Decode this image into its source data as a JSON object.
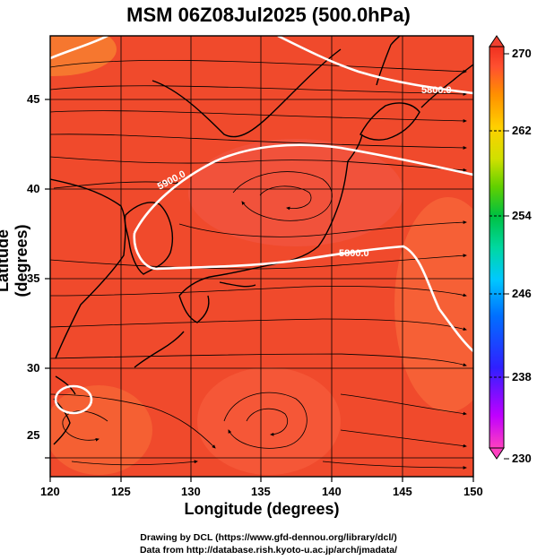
{
  "title": "MSM 06Z08Jul2025 (500.0hPa)",
  "axes": {
    "xlabel": "Longitude (degrees)",
    "ylabel": "Latitude  (degrees)",
    "x_ticks": [
      "120",
      "125",
      "130",
      "135",
      "140",
      "145",
      "150"
    ],
    "y_ticks": [
      "25",
      "30",
      "35",
      "40",
      "45"
    ]
  },
  "contour_labels": [
    "5800.0",
    "5900.0",
    "5800.0"
  ],
  "colorbar": {
    "ticks": [
      "270",
      "262",
      "254",
      "246",
      "238",
      "230"
    ],
    "range": [
      230,
      270
    ],
    "colors": [
      "#ff40c0",
      "#c000ff",
      "#3020ff",
      "#0070ff",
      "#00c8ff",
      "#00d8a0",
      "#00c040",
      "#60d000",
      "#d0e000",
      "#ffd000",
      "#ff9000",
      "#ff5030",
      "#f03020"
    ]
  },
  "credits": {
    "line1": "Drawing by DCL (https://www.gfd-dennou.org/library/dcl/)",
    "line2": "Data from http://database.rish.kyoto-u.ac.jp/arch/jmadata/"
  },
  "colors": {
    "field_main": "#f04a2c",
    "field_warm": "#f86a3a",
    "contour": "#ffffff",
    "coast": "#000000"
  }
}
